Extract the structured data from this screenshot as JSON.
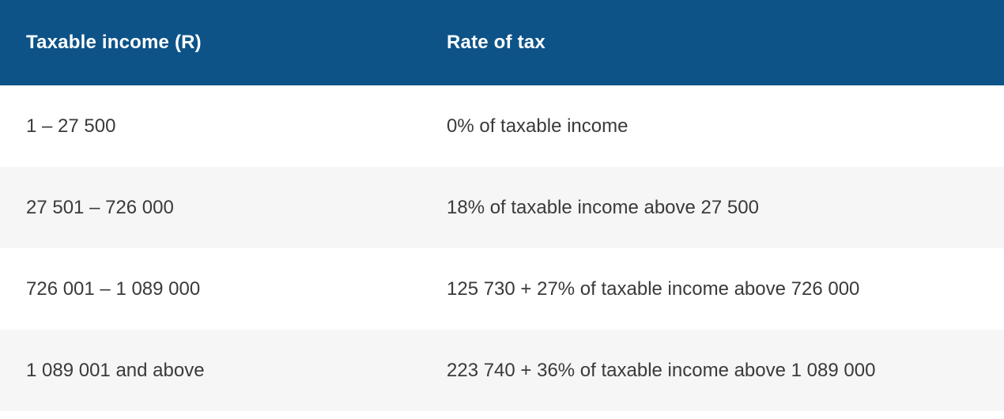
{
  "theme": {
    "header_bg": "#0d5388",
    "header_text": "#ffffff",
    "row_bg": "#ffffff",
    "row_stripe_bg": "#f6f6f6",
    "body_text": "#3a3a3a"
  },
  "table": {
    "columns": [
      {
        "label": "Taxable income (R)"
      },
      {
        "label": "Rate of tax"
      }
    ],
    "rows": [
      {
        "income": "1 – 27 500",
        "rate": "0% of taxable income"
      },
      {
        "income": "27 501 – 726 000",
        "rate": "18% of taxable income above 27 500"
      },
      {
        "income": "726 001 – 1 089 000",
        "rate": "125 730 + 27% of taxable income above 726 000"
      },
      {
        "income": "1 089 001 and above",
        "rate": "223 740 + 36% of taxable income above 1 089 000"
      }
    ]
  }
}
